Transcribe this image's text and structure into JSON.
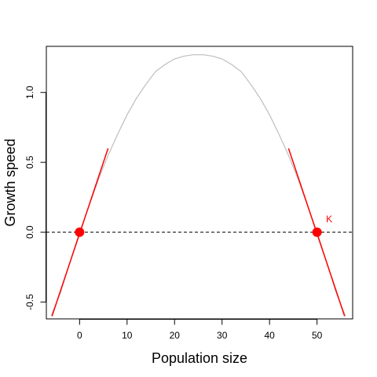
{
  "chart_data": {
    "type": "line",
    "title": "",
    "xlabel": "Population size",
    "ylabel": "Growth speed",
    "xlim": [
      -7,
      57.5
    ],
    "ylim": [
      -0.62,
      1.33
    ],
    "x_ticks": [
      0,
      10,
      20,
      30,
      40,
      50
    ],
    "y_ticks": [
      -0.5,
      0.0,
      0.5,
      1.0
    ],
    "y_tick_labels": [
      "-0.5",
      "0.0",
      "0.5",
      "1.0"
    ],
    "grid": false,
    "legend": "none",
    "series": [
      {
        "style": "curve",
        "color": "#bebebe",
        "x": [
          -6,
          -4,
          -2,
          0,
          2,
          4,
          6,
          8,
          10,
          12,
          14,
          16,
          18,
          20,
          22,
          24,
          25,
          26,
          28,
          30,
          32,
          34,
          36,
          38,
          40,
          42,
          44,
          46,
          48,
          50,
          52,
          54,
          56
        ],
        "y": [
          -0.6,
          -0.43,
          -0.21,
          0.0,
          0.19,
          0.38,
          0.55,
          0.7,
          0.84,
          0.96,
          1.06,
          1.15,
          1.2,
          1.24,
          1.26,
          1.27,
          1.27,
          1.27,
          1.26,
          1.24,
          1.2,
          1.15,
          1.06,
          0.96,
          0.84,
          0.7,
          0.55,
          0.38,
          0.19,
          0.0,
          -0.21,
          -0.43,
          -0.6
        ]
      },
      {
        "style": "tangent",
        "color": "#ff0000",
        "x": [
          -5.8,
          6.0
        ],
        "y": [
          -0.6,
          0.6
        ]
      },
      {
        "style": "tangent",
        "color": "#ff0000",
        "x": [
          44.0,
          55.8
        ],
        "y": [
          0.6,
          -0.6
        ]
      }
    ],
    "reference_line": {
      "y": 0.0,
      "style": "dashed",
      "color": "#000000"
    },
    "points": [
      {
        "x": 0,
        "y": 0.0,
        "color": "#ff0000"
      },
      {
        "x": 50,
        "y": 0.0,
        "color": "#ff0000"
      }
    ],
    "annotations": [
      {
        "text": "K",
        "x": 51.9,
        "y": 0.07,
        "color": "#ff0000"
      }
    ]
  }
}
